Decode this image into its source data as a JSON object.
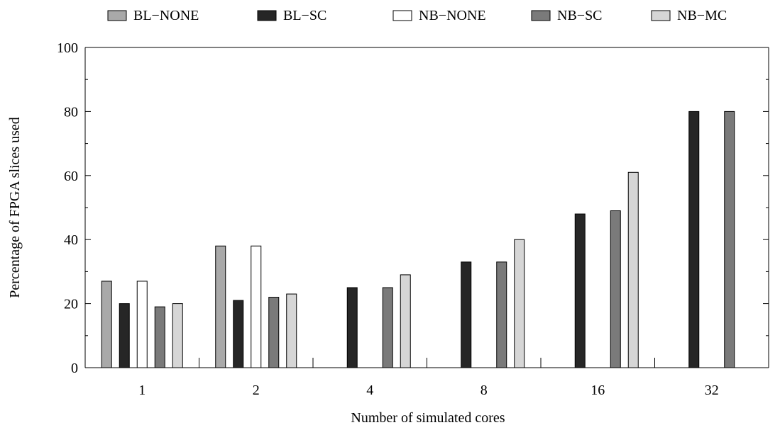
{
  "chart_data": {
    "type": "bar",
    "title": "",
    "xlabel": "Number of simulated cores",
    "ylabel": "Percentage of FPGA slices used",
    "ylim": [
      0,
      100
    ],
    "yticks": [
      0,
      20,
      40,
      60,
      80,
      100
    ],
    "grid": false,
    "legend_position": "top",
    "categories": [
      "1",
      "2",
      "4",
      "8",
      "16",
      "32"
    ],
    "series": [
      {
        "name": "BL−NONE",
        "color": "#a9a9a9",
        "values": [
          27,
          38,
          null,
          null,
          null,
          null
        ]
      },
      {
        "name": "BL−SC",
        "color": "#262626",
        "values": [
          20,
          21,
          25,
          33,
          48,
          80
        ]
      },
      {
        "name": "NB−NONE",
        "color": "#ffffff",
        "values": [
          27,
          38,
          null,
          null,
          null,
          null
        ]
      },
      {
        "name": "NB−SC",
        "color": "#7a7a7a",
        "values": [
          19,
          22,
          25,
          33,
          49,
          80
        ]
      },
      {
        "name": "NB−MC",
        "color": "#d6d6d6",
        "values": [
          20,
          23,
          29,
          40,
          61,
          null
        ]
      }
    ]
  }
}
